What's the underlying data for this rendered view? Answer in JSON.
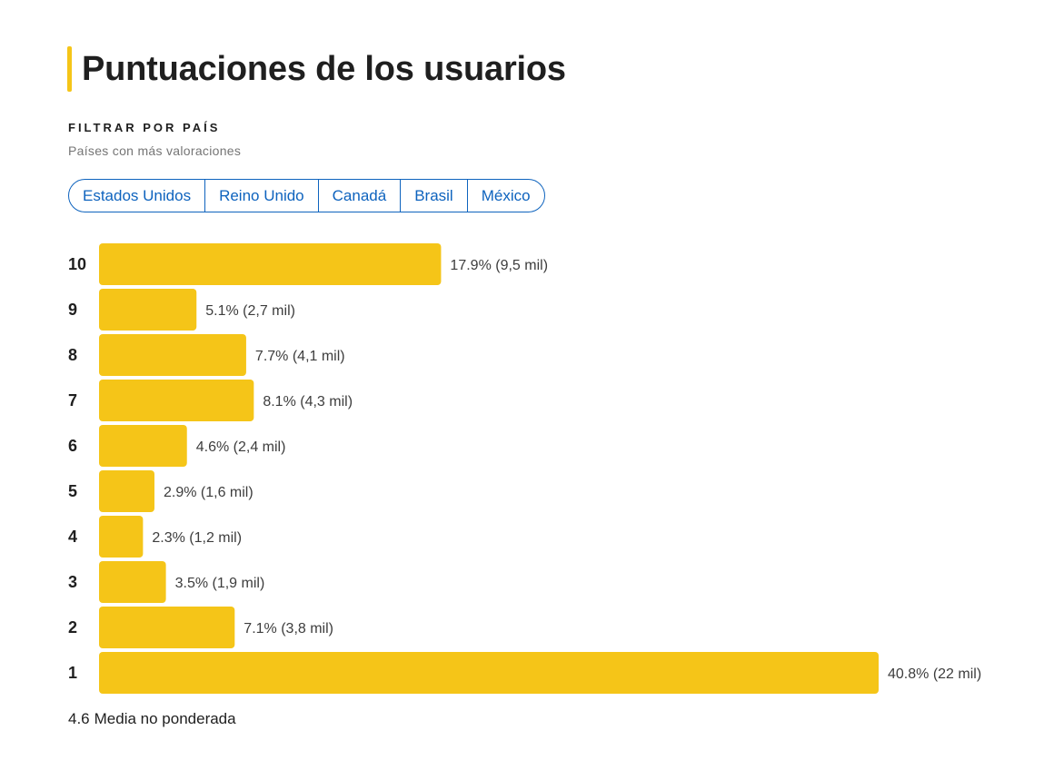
{
  "header": {
    "title": "Puntuaciones de los usuarios"
  },
  "filter": {
    "label": "FILTRAR POR PAÍS",
    "sublabel": "Países con más valoraciones",
    "countries": [
      {
        "label": "Estados Unidos"
      },
      {
        "label": "Reino Unido"
      },
      {
        "label": "Canadá"
      },
      {
        "label": "Brasil"
      },
      {
        "label": "México"
      }
    ]
  },
  "colors": {
    "bar": "#f5c518",
    "chip": "#0e63be",
    "text": "#1f1f1f",
    "value_label": "#3d3d3d"
  },
  "chart_data": {
    "type": "bar",
    "orientation": "horizontal",
    "categories": [
      "10",
      "9",
      "8",
      "7",
      "6",
      "5",
      "4",
      "3",
      "2",
      "1"
    ],
    "values": [
      17.9,
      5.1,
      7.7,
      8.1,
      4.6,
      2.9,
      2.3,
      3.5,
      7.1,
      40.8
    ],
    "counts": [
      "9,5 mil",
      "2,7 mil",
      "4,1 mil",
      "4,3 mil",
      "2,4 mil",
      "1,6 mil",
      "1,2 mil",
      "1,9 mil",
      "3,8 mil",
      "22 mil"
    ],
    "data_labels": [
      "17.9% (9,5 mil)",
      "5.1% (2,7 mil)",
      "7.7% (4,1 mil)",
      "8.1% (4,3 mil)",
      "4.6% (2,4 mil)",
      "2.9% (1,6 mil)",
      "2.3% (1,2 mil)",
      "3.5% (1,9 mil)",
      "7.1% (3,8 mil)",
      "40.8% (22 mil)"
    ],
    "xlim": [
      0,
      40.8
    ],
    "grid": false,
    "legend": "none"
  },
  "summary": {
    "mean": "4.6",
    "mean_label": "Media no ponderada"
  }
}
